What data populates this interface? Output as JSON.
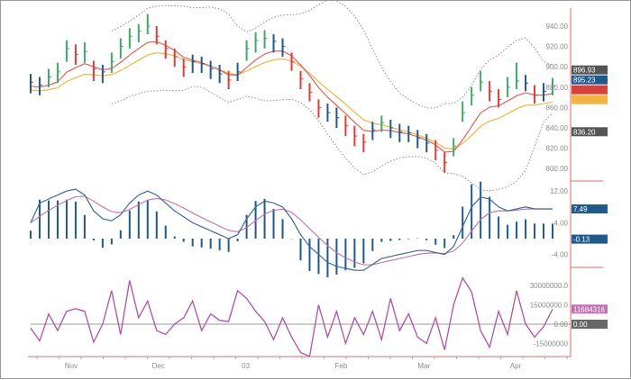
{
  "chart_data": {
    "type": "financial-multi-panel",
    "x_axis": {
      "ticks": [
        {
          "label": "Nov",
          "index": 4.5
        },
        {
          "label": "Dec",
          "index": 14.2
        },
        {
          "label": "03",
          "index": 23.9
        },
        {
          "label": "Feb",
          "index": 34.5
        },
        {
          "label": "Mar",
          "index": 43.7
        },
        {
          "label": "Apr",
          "index": 53.9
        }
      ]
    },
    "price_panel": {
      "type": "ohlc-bars",
      "ylim": [
        790,
        955
      ],
      "yticks": [
        "940.00",
        "920.00",
        "900.00",
        "880.00",
        "860.00",
        "840.00",
        "820.00",
        "800.00"
      ],
      "ytick_values": [
        940,
        920,
        900,
        880,
        860,
        840,
        820,
        800
      ],
      "bars_hlc": [
        [
          893,
          874,
          885
        ],
        [
          890,
          872,
          882
        ],
        [
          898,
          880,
          890
        ],
        [
          904,
          884,
          895
        ],
        [
          926,
          905,
          918
        ],
        [
          922,
          902,
          912
        ],
        [
          924,
          904,
          915
        ],
        [
          906,
          886,
          898
        ],
        [
          902,
          884,
          895
        ],
        [
          914,
          894,
          905
        ],
        [
          928,
          908,
          920
        ],
        [
          938,
          918,
          930
        ],
        [
          942,
          924,
          935
        ],
        [
          952,
          932,
          940
        ],
        [
          940,
          922,
          930
        ],
        [
          926,
          908,
          918
        ],
        [
          918,
          900,
          910
        ],
        [
          908,
          890,
          900
        ],
        [
          912,
          894,
          905
        ],
        [
          910,
          894,
          903
        ],
        [
          906,
          888,
          898
        ],
        [
          902,
          884,
          893
        ],
        [
          896,
          878,
          887
        ],
        [
          904,
          886,
          895
        ],
        [
          926,
          906,
          918
        ],
        [
          934,
          914,
          926
        ],
        [
          936,
          918,
          928
        ],
        [
          932,
          914,
          925
        ],
        [
          928,
          910,
          920
        ],
        [
          914,
          896,
          905
        ],
        [
          896,
          878,
          888
        ],
        [
          884,
          866,
          875
        ],
        [
          868,
          850,
          860
        ],
        [
          864,
          846,
          855
        ],
        [
          860,
          840,
          850
        ],
        [
          852,
          832,
          842
        ],
        [
          842,
          822,
          832
        ],
        [
          834,
          816,
          826
        ],
        [
          846,
          828,
          838
        ],
        [
          852,
          836,
          845
        ],
        [
          848,
          830,
          840
        ],
        [
          844,
          826,
          836
        ],
        [
          842,
          826,
          835
        ],
        [
          838,
          820,
          830
        ],
        [
          834,
          816,
          825
        ],
        [
          828,
          808,
          818
        ],
        [
          816,
          796,
          806
        ],
        [
          830,
          812,
          822
        ],
        [
          866,
          846,
          855
        ],
        [
          880,
          862,
          872
        ],
        [
          896,
          876,
          885
        ],
        [
          886,
          866,
          876
        ],
        [
          878,
          860,
          868
        ],
        [
          890,
          870,
          880
        ],
        [
          904,
          878,
          886
        ],
        [
          892,
          876,
          884
        ],
        [
          882,
          864,
          872
        ],
        [
          884,
          866,
          876
        ],
        [
          889,
          872,
          881
        ]
      ],
      "bar_colors": {
        "up": "#3fa86a",
        "down": "#d9403a",
        "neutral": "#1f5a8c"
      },
      "ma_fast_color": "#e0605a",
      "ma_slow_color": "#f2b640",
      "band_color": "#8a8a8a",
      "value_labels": [
        {
          "text": "896.93",
          "value": 896.93,
          "color": "#555555"
        },
        {
          "text": "895.23",
          "value": 895.23,
          "color": "#1f5a8c"
        },
        {
          "text": "",
          "value": 884,
          "color": "#d9403a"
        },
        {
          "text": "",
          "value": 878,
          "color": "#f2b640"
        },
        {
          "text": "836.20",
          "value": 836.2,
          "color": "#555555"
        }
      ]
    },
    "macd_panel": {
      "ylim": [
        -7.5,
        13
      ],
      "yticks": [
        "12.00",
        "4.00",
        "-4.00"
      ],
      "ytick_values": [
        12,
        4,
        -4
      ],
      "macd": [
        4,
        9,
        10,
        11,
        12,
        12.5,
        11,
        7,
        5,
        4.5,
        6,
        9,
        11,
        12,
        11,
        9,
        7,
        5.5,
        4,
        3,
        2,
        1,
        0,
        1,
        5,
        8,
        9.5,
        9,
        8,
        5,
        1,
        -2,
        -4,
        -6,
        -7,
        -7.5,
        -8,
        -8,
        -6.5,
        -5,
        -4.5,
        -4,
        -3.5,
        -3,
        -3,
        -3.5,
        -4,
        -2,
        3,
        8,
        10.5,
        10,
        8,
        7,
        7.5,
        8,
        7.5,
        7.5,
        7.49
      ],
      "macd_color": "#3a6a9a",
      "signal_color": "#c070b0",
      "hist_color": "#1f5a8c",
      "value_labels": [
        {
          "text": "7.49",
          "value": 7.49,
          "color": "#1f5a8c"
        },
        {
          "text": "-0.13",
          "value": -0.13,
          "color": "#1f5a8c"
        }
      ]
    },
    "osc_panel": {
      "ylim": [
        -25000000,
        40000000
      ],
      "yticks": [
        "30000000.0",
        "15000000.0",
        "0.00",
        "-15000000"
      ],
      "ytick_values": [
        30000000,
        15000000,
        0,
        -15000000
      ],
      "values_millions": [
        -3,
        -13,
        8,
        -5,
        10,
        12,
        10,
        -14,
        0,
        26,
        -8,
        34,
        5,
        18,
        -5,
        -8,
        0,
        5,
        18,
        -5,
        8,
        3,
        2,
        26,
        20,
        10,
        2,
        -12,
        5,
        -10,
        -22,
        -25,
        15,
        -10,
        10,
        -15,
        5,
        -8,
        10,
        -12,
        20,
        -5,
        8,
        -10,
        -15,
        5,
        -20,
        15,
        36,
        25,
        -5,
        -18,
        10,
        -8,
        26,
        0,
        -10,
        -2,
        11.684316
      ],
      "line_color": "#b050a8",
      "zero_line_color": "#999999",
      "value_labels": [
        {
          "text": "11684316",
          "value": 11684316,
          "color": "#c070b0"
        },
        {
          "text": "0.00",
          "value": 0,
          "color": "#666666"
        }
      ]
    }
  }
}
